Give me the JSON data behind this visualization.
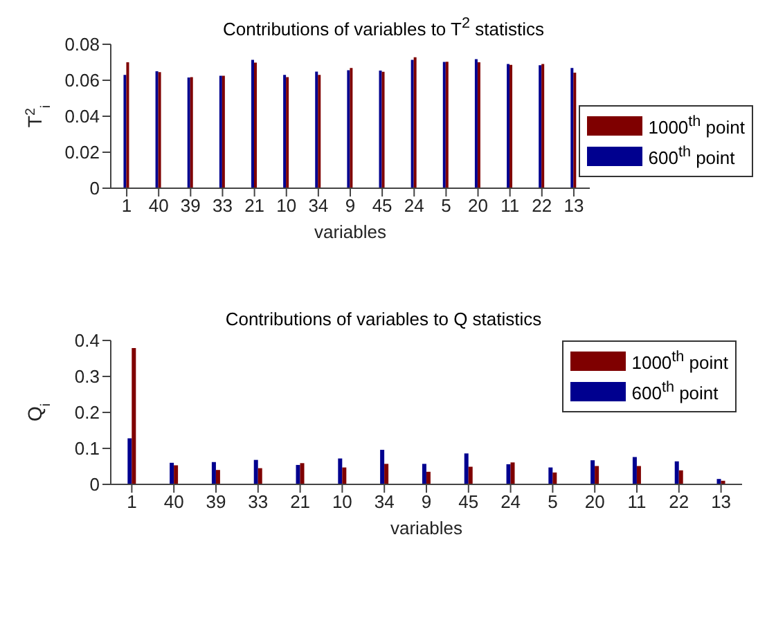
{
  "chart_data": [
    {
      "type": "bar",
      "title": "Contributions of variables to T$^{2}$ statistics",
      "xlabel": "variables",
      "ylabel": "T$^{2}$$_{i}$",
      "categories": [
        "1",
        "40",
        "39",
        "33",
        "21",
        "10",
        "34",
        "9",
        "45",
        "24",
        "5",
        "20",
        "11",
        "22",
        "13"
      ],
      "series": [
        {
          "name": "600$^{th}$ point",
          "color": "#00008f",
          "values": [
            0.063,
            0.065,
            0.0615,
            0.0625,
            0.0713,
            0.063,
            0.0648,
            0.0656,
            0.0654,
            0.0713,
            0.0702,
            0.0717,
            0.069,
            0.0684,
            0.0668
          ]
        },
        {
          "name": "1000$^{th}$ point",
          "color": "#7f0000",
          "values": [
            0.07,
            0.0645,
            0.0617,
            0.0625,
            0.0698,
            0.0617,
            0.063,
            0.0668,
            0.0647,
            0.0728,
            0.0703,
            0.07,
            0.0686,
            0.069,
            0.0642
          ]
        }
      ],
      "ylim": [
        0,
        0.08
      ],
      "yticks": [
        0,
        0.02,
        0.04,
        0.06,
        0.08
      ],
      "legend": "right"
    },
    {
      "type": "bar",
      "title": "Contributions of variables to Q statistics",
      "xlabel": "variables",
      "ylabel": "Q$_{i}$",
      "categories": [
        "1",
        "40",
        "39",
        "33",
        "21",
        "10",
        "34",
        "9",
        "45",
        "24",
        "5",
        "20",
        "11",
        "22",
        "13"
      ],
      "series": [
        {
          "name": "600$^{th}$ point",
          "color": "#00008f",
          "values": [
            0.128,
            0.06,
            0.062,
            0.068,
            0.054,
            0.072,
            0.096,
            0.057,
            0.086,
            0.056,
            0.047,
            0.067,
            0.076,
            0.064,
            0.015
          ]
        },
        {
          "name": "1000$^{th}$ point",
          "color": "#7f0000",
          "values": [
            0.379,
            0.053,
            0.04,
            0.045,
            0.059,
            0.047,
            0.057,
            0.035,
            0.049,
            0.061,
            0.033,
            0.051,
            0.051,
            0.039,
            0.01
          ]
        }
      ],
      "ylim": [
        0,
        0.4
      ],
      "yticks": [
        0,
        0.1,
        0.2,
        0.3,
        0.4
      ],
      "legend": "top right"
    }
  ]
}
